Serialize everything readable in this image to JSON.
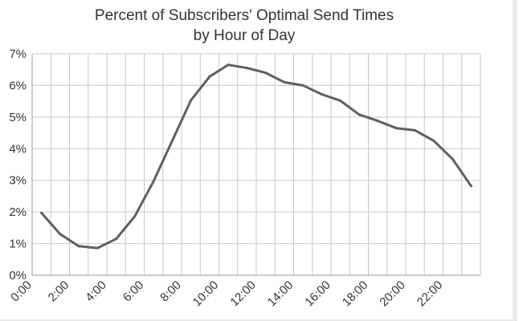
{
  "chart_data": {
    "type": "line",
    "title": "Percent of Subscribers' Optimal Send Times",
    "subtitle": "by Hour of Day",
    "xlabel": "",
    "ylabel": "",
    "ylim": [
      0,
      7
    ],
    "yticks": [
      "0%",
      "1%",
      "2%",
      "3%",
      "4%",
      "5%",
      "6%",
      "7%"
    ],
    "xticks": [
      "0:00",
      "2:00",
      "4:00",
      "6:00",
      "8:00",
      "10:00",
      "12:00",
      "14:00",
      "16:00",
      "18:00",
      "20:00",
      "22:00"
    ],
    "grid": true,
    "legend": "none",
    "line_color": "#5f5f5f",
    "grid_color": "#c8c8c8",
    "series": [
      {
        "x": [
          0.5,
          1.5,
          2.5,
          3.5,
          4.5,
          5.5,
          6.5,
          7.5,
          8.5,
          9.5,
          10.5,
          11.5,
          12.5,
          13.5,
          14.5,
          15.5,
          16.5,
          17.5,
          18.5,
          19.5,
          20.5,
          21.5,
          22.5,
          23.5
        ],
        "values": [
          1.97,
          1.3,
          0.92,
          0.86,
          1.15,
          1.87,
          2.97,
          4.25,
          5.53,
          6.28,
          6.65,
          6.55,
          6.4,
          6.1,
          6.0,
          5.72,
          5.52,
          5.08,
          4.88,
          4.65,
          4.58,
          4.25,
          3.68,
          2.82
        ]
      }
    ]
  }
}
